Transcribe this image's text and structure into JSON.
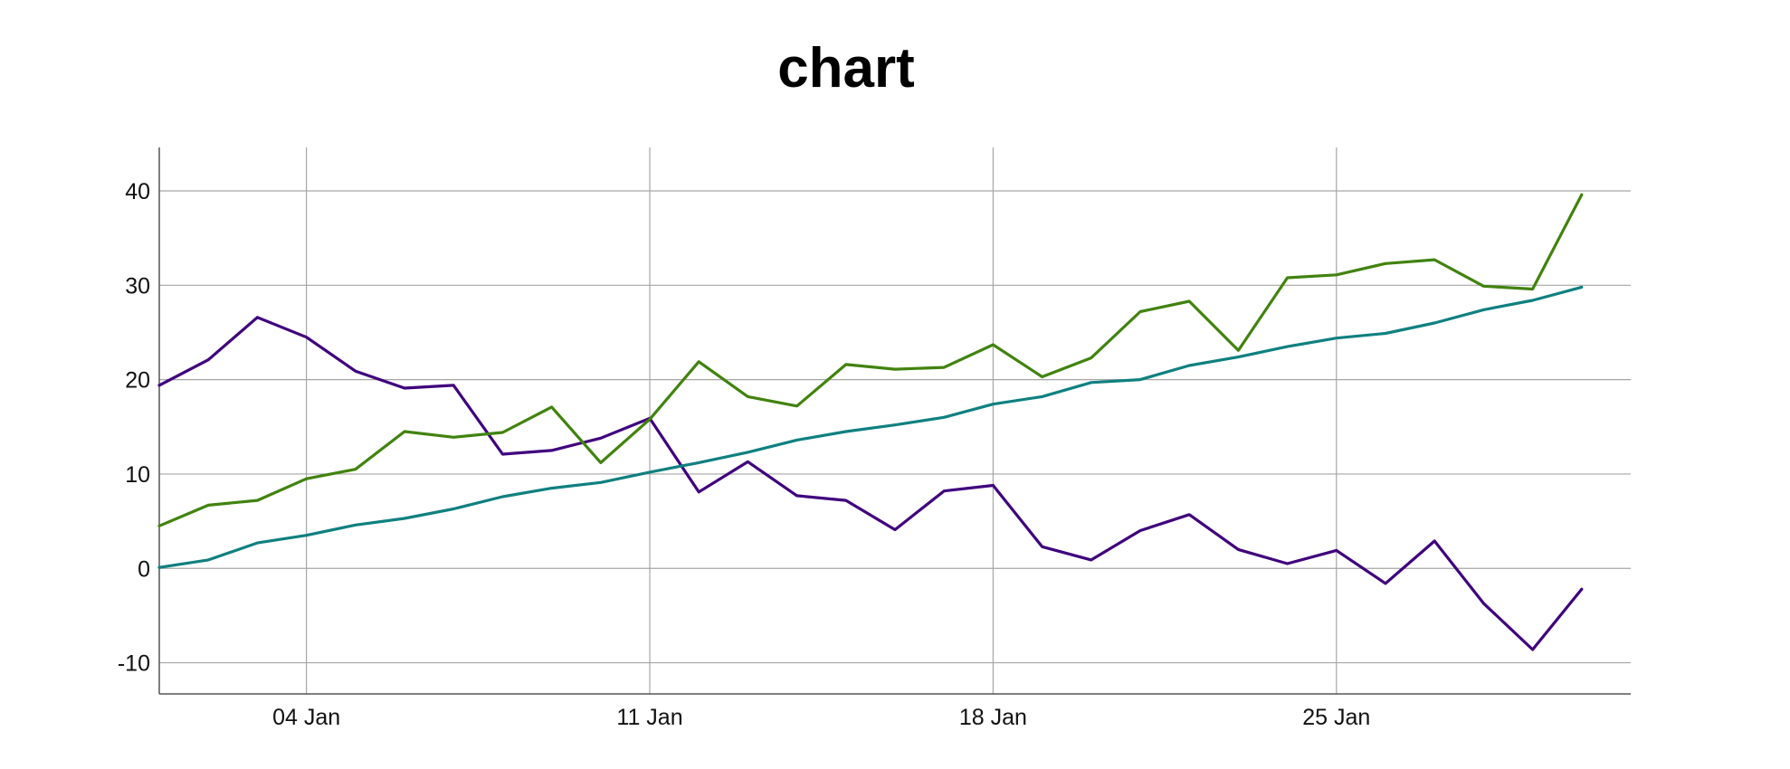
{
  "chart_data": {
    "type": "line",
    "title": "chart",
    "xlabel": "",
    "ylabel": "",
    "x_start": "2000-01-01",
    "x_end": "2000-01-31",
    "x_ticks": [
      {
        "date": "2000-01-04",
        "label": "04 Jan"
      },
      {
        "date": "2000-01-11",
        "label": "11 Jan"
      },
      {
        "date": "2000-01-18",
        "label": "18 Jan"
      },
      {
        "date": "2000-01-25",
        "label": "25 Jan"
      }
    ],
    "ylim": [
      -13.3,
      44.6
    ],
    "y_ticks": [
      -10,
      0,
      10,
      20,
      30,
      40
    ],
    "grid": true,
    "x": [
      "2000-01-01",
      "2000-01-02",
      "2000-01-03",
      "2000-01-04",
      "2000-01-05",
      "2000-01-06",
      "2000-01-07",
      "2000-01-08",
      "2000-01-09",
      "2000-01-10",
      "2000-01-11",
      "2000-01-12",
      "2000-01-13",
      "2000-01-14",
      "2000-01-15",
      "2000-01-16",
      "2000-01-17",
      "2000-01-18",
      "2000-01-19",
      "2000-01-20",
      "2000-01-21",
      "2000-01-22",
      "2000-01-23",
      "2000-01-24",
      "2000-01-25",
      "2000-01-26",
      "2000-01-27",
      "2000-01-28",
      "2000-01-29",
      "2000-01-30"
    ],
    "series": [
      {
        "color": "#3f007d",
        "values": [
          19.4,
          22.1,
          26.6,
          24.5,
          20.9,
          19.1,
          19.4,
          12.1,
          12.5,
          13.8,
          15.9,
          8.1,
          11.3,
          7.7,
          7.2,
          4.1,
          8.2,
          8.8,
          2.3,
          0.9,
          4.0,
          5.7,
          2.0,
          0.5,
          1.9,
          -1.6,
          2.9,
          -3.7,
          -8.6,
          -2.2
        ]
      },
      {
        "color": "#41830e",
        "values": [
          4.5,
          6.7,
          7.2,
          9.5,
          10.5,
          14.5,
          13.9,
          14.4,
          17.1,
          11.2,
          15.8,
          21.9,
          18.2,
          17.2,
          21.6,
          21.1,
          21.3,
          23.7,
          20.3,
          22.3,
          27.2,
          28.3,
          23.1,
          30.8,
          31.1,
          32.3,
          32.7,
          29.9,
          29.6,
          39.6
        ]
      },
      {
        "color": "#0f8080",
        "values": [
          0.1,
          0.9,
          2.7,
          3.5,
          4.6,
          5.3,
          6.3,
          7.6,
          8.5,
          9.1,
          10.2,
          11.2,
          12.3,
          13.6,
          14.5,
          15.2,
          16.0,
          17.4,
          18.2,
          19.7,
          20.0,
          21.5,
          22.4,
          23.5,
          24.4,
          24.9,
          26.0,
          27.4,
          28.4,
          29.8
        ]
      }
    ]
  }
}
